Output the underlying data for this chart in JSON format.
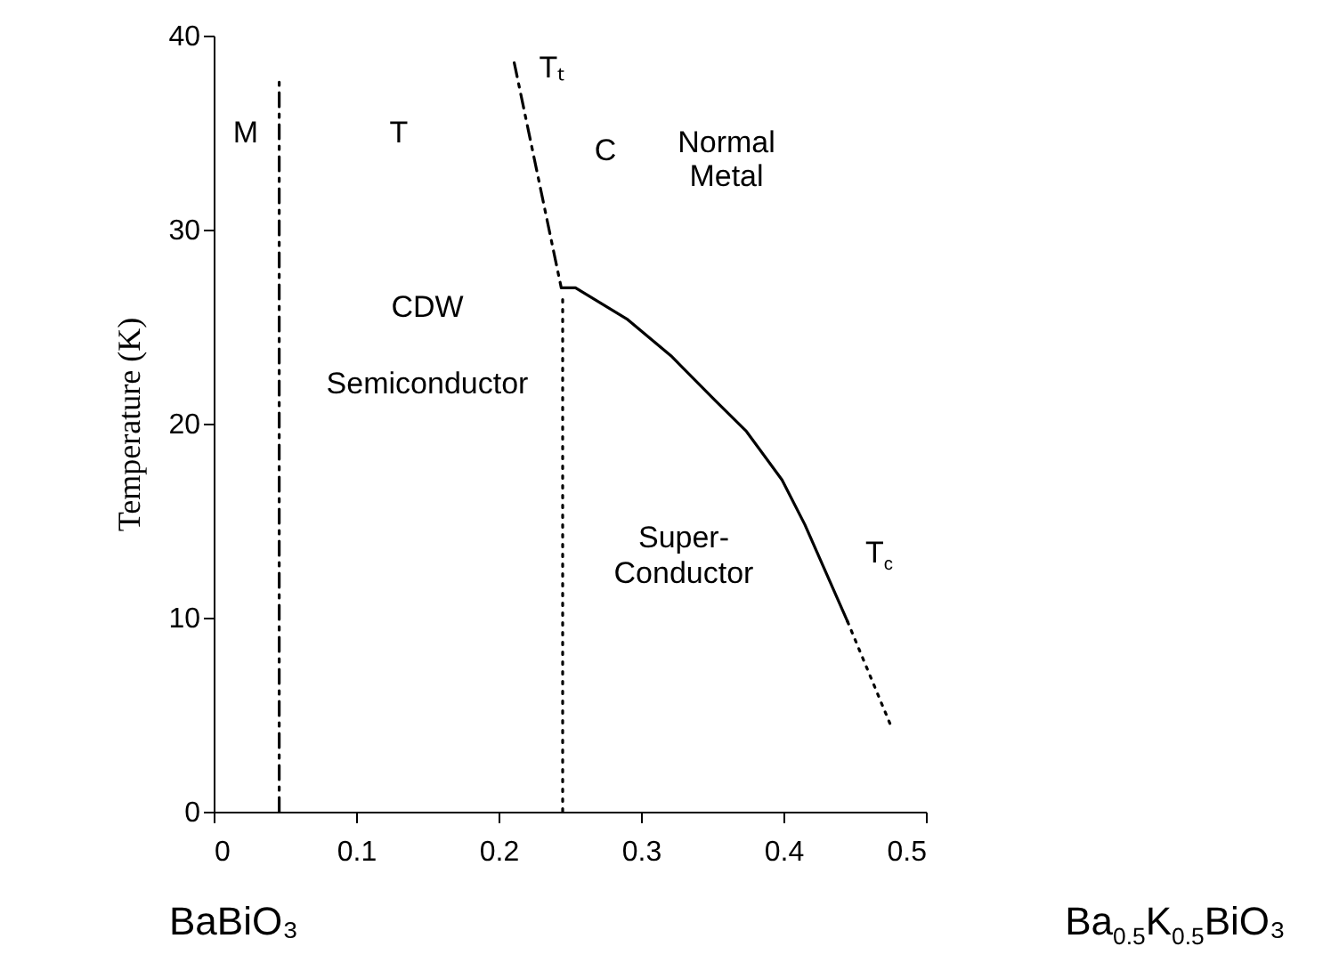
{
  "chart_data": {
    "type": "line",
    "ylabel": "Temperature (K)",
    "xlim": [
      0,
      0.5
    ],
    "xticks": [
      0,
      0.1,
      0.2,
      0.3,
      0.4,
      0.5
    ],
    "ylim": [
      0,
      40
    ],
    "yticks": [
      0,
      10,
      20,
      30,
      40
    ],
    "grid": false,
    "series": [
      {
        "color": "#000000",
        "line_style": "dashed",
        "x": [
          0.046,
          0.046
        ],
        "values": [
          0,
          37.6
        ]
      },
      {
        "name": "Tₜ",
        "color": "#000000",
        "line_style": "dashed",
        "x": [
          0.211,
          0.244
        ],
        "values": [
          38.6,
          27.0
        ]
      },
      {
        "color": "#000000",
        "line_style": "dotted",
        "x": [
          0.245,
          0.245
        ],
        "values": [
          26.4,
          0
        ]
      },
      {
        "name": "T$_{c}$",
        "color": "#000000",
        "line_style": "solid",
        "x": [
          0.245,
          0.254,
          0.29,
          0.321,
          0.352,
          0.374,
          0.399,
          0.415,
          0.43,
          0.445
        ],
        "values": [
          27.0,
          27.0,
          25.4,
          23.5,
          21.2,
          19.6,
          17.1,
          14.8,
          12.3,
          9.8
        ]
      },
      {
        "color": "#000000",
        "line_style": "dotted",
        "x": [
          0.445,
          0.475
        ],
        "values": [
          9.8,
          4.5
        ]
      }
    ],
    "annotations": [
      "M",
      "T",
      "C",
      "Normal\nMetal",
      "CDW",
      "Semiconductor",
      "Super-\nConductor",
      "BaBiO₃",
      "Ba$_{0.5}$K$_{0.5}$BiO₃"
    ]
  }
}
